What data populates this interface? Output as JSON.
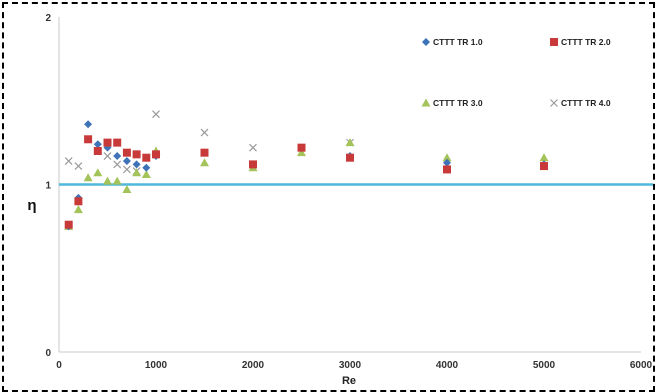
{
  "chart_data": {
    "type": "scatter",
    "title": "",
    "xlabel": "Re",
    "ylabel": "η",
    "xlim": [
      0,
      6000
    ],
    "ylim": [
      0,
      2
    ],
    "x_ticks": [
      "0",
      "1000",
      "2000",
      "3000",
      "4000",
      "5000",
      "6000"
    ],
    "y_ticks": [
      "0",
      "1",
      "2"
    ],
    "x_tick_values": [
      0,
      1000,
      2000,
      3000,
      4000,
      5000,
      6000
    ],
    "y_tick_values": [
      0,
      1,
      2
    ],
    "grid": false,
    "legend_position": "top-right",
    "reference_line": {
      "y": 1.0,
      "color": "#4fb8dc"
    },
    "series": [
      {
        "name": "CTTT  TR 1.0",
        "marker": "diamond",
        "color": "#3f73b8",
        "points": [
          [
            100,
            0.75
          ],
          [
            200,
            0.92
          ],
          [
            300,
            1.36
          ],
          [
            400,
            1.24
          ],
          [
            500,
            1.22
          ],
          [
            600,
            1.17
          ],
          [
            700,
            1.14
          ],
          [
            800,
            1.12
          ],
          [
            900,
            1.1
          ],
          [
            1000,
            1.17
          ],
          [
            1500,
            1.19
          ],
          [
            2000,
            1.12
          ],
          [
            2500,
            1.22
          ],
          [
            3000,
            1.17
          ],
          [
            4000,
            1.13
          ],
          [
            5000,
            1.12
          ]
        ]
      },
      {
        "name": "CTTT  TR 2.0",
        "marker": "square",
        "color": "#c83a3a",
        "points": [
          [
            100,
            0.76
          ],
          [
            200,
            0.9
          ],
          [
            300,
            1.27
          ],
          [
            400,
            1.2
          ],
          [
            500,
            1.25
          ],
          [
            600,
            1.25
          ],
          [
            700,
            1.19
          ],
          [
            800,
            1.18
          ],
          [
            900,
            1.16
          ],
          [
            1000,
            1.18
          ],
          [
            1500,
            1.19
          ],
          [
            2000,
            1.12
          ],
          [
            2500,
            1.22
          ],
          [
            3000,
            1.16
          ],
          [
            4000,
            1.09
          ],
          [
            5000,
            1.11
          ]
        ]
      },
      {
        "name": "CTTT  TR 3.0",
        "marker": "triangle",
        "color": "#a4c35a",
        "points": [
          [
            100,
            0.75
          ],
          [
            200,
            0.85
          ],
          [
            300,
            1.04
          ],
          [
            400,
            1.07
          ],
          [
            500,
            1.02
          ],
          [
            600,
            1.02
          ],
          [
            700,
            0.97
          ],
          [
            800,
            1.07
          ],
          [
            900,
            1.06
          ],
          [
            1000,
            1.2
          ],
          [
            1500,
            1.13
          ],
          [
            2000,
            1.1
          ],
          [
            2500,
            1.19
          ],
          [
            3000,
            1.25
          ],
          [
            4000,
            1.16
          ],
          [
            5000,
            1.16
          ]
        ]
      },
      {
        "name": "CTTT  TR 4.0",
        "marker": "x",
        "color": "#9a9a9a",
        "points": [
          [
            100,
            1.14
          ],
          [
            200,
            1.11
          ],
          [
            500,
            1.17
          ],
          [
            600,
            1.12
          ],
          [
            700,
            1.09
          ],
          [
            800,
            1.08
          ],
          [
            1000,
            1.42
          ],
          [
            1500,
            1.31
          ],
          [
            2000,
            1.22
          ],
          [
            3000,
            1.25
          ]
        ]
      }
    ]
  }
}
